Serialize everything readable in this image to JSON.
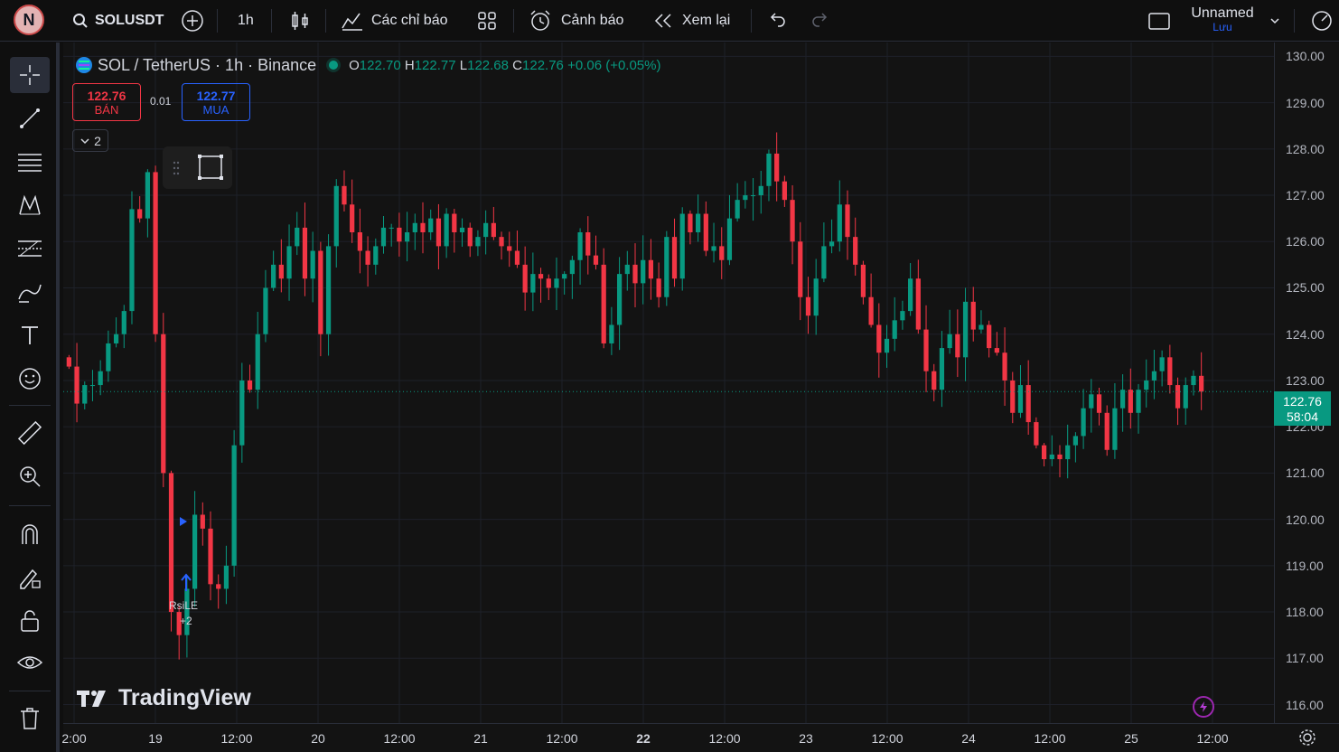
{
  "topbar": {
    "avatar_letter": "N",
    "symbol": "SOLUSDT",
    "interval": "1h",
    "indicators_label": "Các chỉ báo",
    "alerts_label": "Cảnh báo",
    "replay_label": "Xem lại",
    "layout_name": "Unnamed",
    "save_label": "Lưu"
  },
  "legend": {
    "title": "SOL / TetherUS · 1h · Binance",
    "o_key": "O",
    "o": "122.70",
    "h_key": "H",
    "h": "122.77",
    "l_key": "L",
    "l": "122.68",
    "c_key": "C",
    "c": "122.76",
    "change": "+0.06 (+0.05%)"
  },
  "trade": {
    "sell_price": "122.76",
    "sell_label": "BÁN",
    "spread": "0.01",
    "buy_price": "122.77",
    "buy_label": "MUA",
    "collapse_count": "2"
  },
  "signal": {
    "label": "RsiLE",
    "extra": "+2"
  },
  "brand": "TradingView",
  "last_price": {
    "value": "122.76",
    "countdown": "58:04"
  },
  "colors": {
    "up": "#089981",
    "down": "#f23645",
    "background": "#131313"
  },
  "chart_data": {
    "type": "candlestick",
    "y_ticks": [
      "130.00",
      "129.00",
      "128.00",
      "127.00",
      "126.00",
      "125.00",
      "124.00",
      "123.00",
      "122.00",
      "121.00",
      "120.00",
      "119.00",
      "118.00",
      "117.00",
      "116.00"
    ],
    "x_ticks": [
      "2:00",
      "19",
      "12:00",
      "20",
      "12:00",
      "21",
      "12:00",
      "22",
      "12:00",
      "23",
      "12:00",
      "24",
      "12:00",
      "25",
      "12:00"
    ],
    "ylim": [
      115.6,
      130.3
    ],
    "closes": [
      123.3,
      122.5,
      122.9,
      122.9,
      123.2,
      123.8,
      124,
      124.5,
      126.7,
      126.5,
      127.5,
      124,
      121,
      118,
      117.5,
      118.5,
      120.1,
      119.8,
      118.6,
      118.5,
      119,
      121.6,
      123,
      122.8,
      124,
      125,
      125.5,
      125.2,
      125.9,
      126.3,
      125.2,
      125.8,
      124,
      125.9,
      127.2,
      126.8,
      126.2,
      125.8,
      125.5,
      125.9,
      126.3,
      126.3,
      126,
      126.2,
      126.4,
      126.2,
      126.5,
      125.9,
      126.6,
      126.2,
      126.3,
      125.9,
      126.1,
      126.4,
      126.1,
      125.9,
      125.8,
      125.5,
      124.9,
      125.3,
      125.2,
      125,
      125.2,
      125.3,
      125.6,
      126.2,
      125.7,
      125.5,
      123.8,
      124.2,
      125.3,
      125.5,
      125.1,
      125.6,
      125.2,
      124.8,
      126.1,
      125.2,
      126.6,
      126.2,
      126.6,
      125.8,
      125.9,
      125.6,
      126.5,
      126.9,
      127,
      127,
      127.2,
      127.9,
      127.3,
      126.9,
      126,
      124.8,
      124.4,
      125.2,
      125.9,
      126,
      126.8,
      126.1,
      125.5,
      124.8,
      124.2,
      123.6,
      123.9,
      124.3,
      124.5,
      125.2,
      124.1,
      123.2,
      122.8,
      123.7,
      124,
      123.5,
      124.7,
      124.1,
      124.2,
      123.7,
      123.6,
      123,
      122.3,
      122.9,
      122.1,
      121.6,
      121.3,
      121.4,
      121.3,
      121.6,
      121.8,
      122.4,
      122.7,
      122.3,
      121.5,
      122.4,
      122.8,
      122.3,
      122.8,
      123,
      123.2,
      123.5,
      122.9,
      122.4,
      122.9,
      123.1,
      122.76
    ]
  }
}
